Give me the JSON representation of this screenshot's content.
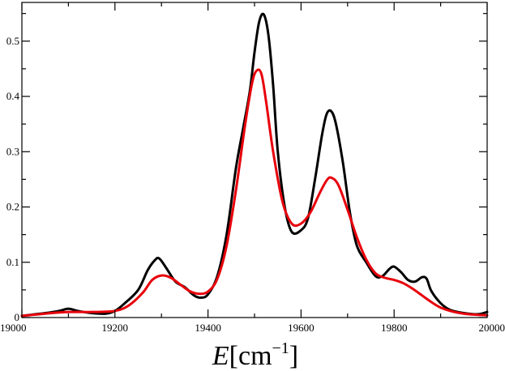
{
  "chart_data": {
    "type": "line",
    "title": "",
    "xlabel": "E[cm−1]",
    "xlabel_parts": {
      "italic": "E",
      "open": "[cm",
      "sup": "−1",
      "close": "]"
    },
    "ylabel": "",
    "xlim": [
      19000,
      20000
    ],
    "ylim": [
      0,
      0.57
    ],
    "grid": false,
    "x_ticks": [
      "19000",
      "19200",
      "19400",
      "19600",
      "19800",
      "20000"
    ],
    "y_ticks": [
      "0",
      "0.1",
      "0.2",
      "0.3",
      "0.4",
      "0.5"
    ],
    "series": [
      {
        "color": "#000000",
        "x": [
          19000,
          19050,
          19080,
          19100,
          19120,
          19150,
          19180,
          19200,
          19220,
          19250,
          19270,
          19285,
          19295,
          19310,
          19330,
          19350,
          19370,
          19385,
          19400,
          19420,
          19440,
          19460,
          19475,
          19490,
          19500,
          19510,
          19520,
          19530,
          19540,
          19550,
          19565,
          19580,
          19600,
          19615,
          19630,
          19645,
          19655,
          19665,
          19675,
          19690,
          19705,
          19720,
          19740,
          19760,
          19775,
          19790,
          19800,
          19815,
          19830,
          19845,
          19860,
          19870,
          19880,
          19900,
          19920,
          19950,
          19980,
          20000
        ],
        "y": [
          0.003,
          0.008,
          0.012,
          0.016,
          0.012,
          0.008,
          0.007,
          0.012,
          0.025,
          0.05,
          0.085,
          0.103,
          0.107,
          0.09,
          0.065,
          0.055,
          0.04,
          0.036,
          0.042,
          0.075,
          0.15,
          0.27,
          0.34,
          0.41,
          0.48,
          0.535,
          0.548,
          0.51,
          0.42,
          0.3,
          0.2,
          0.155,
          0.158,
          0.18,
          0.25,
          0.33,
          0.368,
          0.373,
          0.35,
          0.28,
          0.19,
          0.13,
          0.1,
          0.075,
          0.075,
          0.088,
          0.092,
          0.082,
          0.068,
          0.065,
          0.073,
          0.07,
          0.048,
          0.026,
          0.014,
          0.008,
          0.006,
          0.01
        ]
      },
      {
        "color": "#e8000b",
        "x": [
          19000,
          19050,
          19100,
          19150,
          19200,
          19230,
          19260,
          19280,
          19300,
          19320,
          19340,
          19360,
          19380,
          19400,
          19420,
          19440,
          19460,
          19480,
          19495,
          19505,
          19515,
          19525,
          19540,
          19560,
          19580,
          19600,
          19620,
          19640,
          19655,
          19665,
          19680,
          19700,
          19720,
          19740,
          19760,
          19780,
          19800,
          19820,
          19840,
          19860,
          19880,
          19900,
          19930,
          19960,
          20000
        ],
        "y": [
          0.003,
          0.007,
          0.01,
          0.01,
          0.012,
          0.022,
          0.045,
          0.068,
          0.076,
          0.072,
          0.06,
          0.048,
          0.043,
          0.047,
          0.07,
          0.13,
          0.23,
          0.35,
          0.425,
          0.447,
          0.44,
          0.39,
          0.3,
          0.21,
          0.17,
          0.17,
          0.19,
          0.225,
          0.248,
          0.253,
          0.24,
          0.195,
          0.145,
          0.105,
          0.08,
          0.072,
          0.068,
          0.062,
          0.052,
          0.04,
          0.028,
          0.018,
          0.01,
          0.006,
          0.004
        ]
      }
    ]
  }
}
